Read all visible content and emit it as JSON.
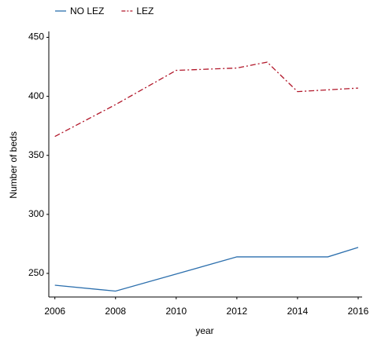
{
  "chart_data": {
    "type": "line",
    "x_label": "year",
    "y_label": "Number of beds",
    "x": [
      2006,
      2008,
      2010,
      2012,
      2013,
      2014,
      2015,
      2016
    ],
    "series": [
      {
        "name": "NO LEZ",
        "color": "#2c6fad",
        "dash": false,
        "values": [
          240,
          235,
          249.5,
          264,
          264,
          264,
          264,
          272
        ]
      },
      {
        "name": "LEZ",
        "color": "#b2182b",
        "dash": true,
        "values": [
          366,
          393,
          422,
          424,
          429,
          404,
          405.5,
          407
        ]
      }
    ],
    "xlim": [
      2005.8,
      2016.13
    ],
    "xticks": [
      2006,
      2008,
      2010,
      2012,
      2014,
      2016
    ],
    "ylim": [
      230,
      455
    ],
    "yticks": [
      250,
      300,
      350,
      400,
      450
    ],
    "legend": "top-left"
  }
}
